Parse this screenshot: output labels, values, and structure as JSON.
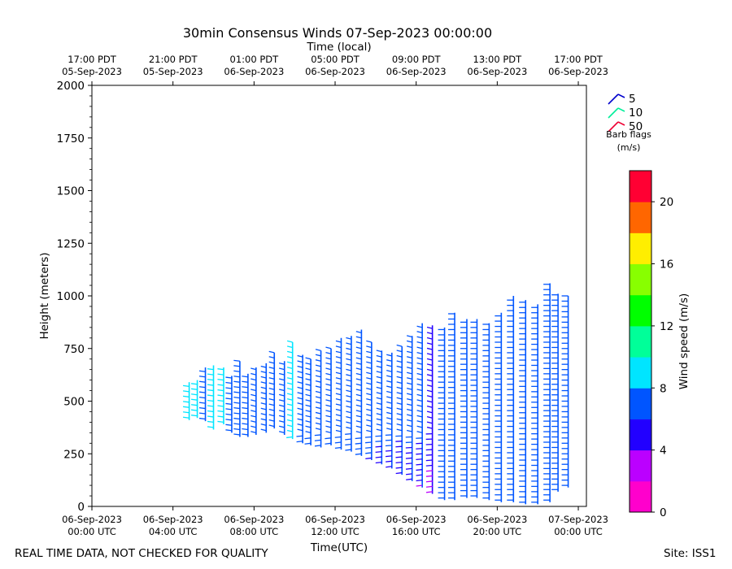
{
  "chart_data": {
    "type": "barbs",
    "title": "30min Consensus Winds 07-Sep-2023 00:00:00",
    "top_axis_label": "Time (local)",
    "xlabel": "Time(UTC)",
    "ylabel": "Height (meters)",
    "x_range_hours_utc": [
      0,
      24.4
    ],
    "ylim": [
      0,
      2000
    ],
    "y_ticks": [
      0,
      250,
      500,
      750,
      1000,
      1250,
      1500,
      1750,
      2000
    ],
    "x_ticks": [
      {
        "hour": 0,
        "line1": "06-Sep-2023",
        "line2": "00:00 UTC"
      },
      {
        "hour": 4,
        "line1": "06-Sep-2023",
        "line2": "04:00 UTC"
      },
      {
        "hour": 8,
        "line1": "06-Sep-2023",
        "line2": "08:00 UTC"
      },
      {
        "hour": 12,
        "line1": "06-Sep-2023",
        "line2": "12:00 UTC"
      },
      {
        "hour": 16,
        "line1": "06-Sep-2023",
        "line2": "16:00 UTC"
      },
      {
        "hour": 20,
        "line1": "06-Sep-2023",
        "line2": "20:00 UTC"
      },
      {
        "hour": 24,
        "line1": "07-Sep-2023",
        "line2": "00:00 UTC"
      }
    ],
    "top_ticks": [
      {
        "hour": 0,
        "line1": "17:00 PDT",
        "line2": "05-Sep-2023"
      },
      {
        "hour": 4,
        "line1": "21:00 PDT",
        "line2": "05-Sep-2023"
      },
      {
        "hour": 8,
        "line1": "01:00 PDT",
        "line2": "06-Sep-2023"
      },
      {
        "hour": 12,
        "line1": "05:00 PDT",
        "line2": "06-Sep-2023"
      },
      {
        "hour": 16,
        "line1": "09:00 PDT",
        "line2": "06-Sep-2023"
      },
      {
        "hour": 20,
        "line1": "13:00 PDT",
        "line2": "06-Sep-2023"
      },
      {
        "hour": 24,
        "line1": "17:00 PDT",
        "line2": "06-Sep-2023"
      }
    ],
    "barb_legend": {
      "items": [
        {
          "value": "5",
          "color": "#0000cc"
        },
        {
          "value": "10",
          "color": "#00ee99"
        },
        {
          "value": "50",
          "color": "#ee0033"
        }
      ],
      "caption_line1": "Barb flags",
      "caption_line2": "(m/s)"
    },
    "colorbar": {
      "label": "Wind speed (m/s)",
      "min": 0,
      "max": 22,
      "ticks": [
        0,
        4,
        8,
        12,
        16,
        20
      ],
      "colors": [
        "#ff00cc",
        "#bb00ff",
        "#2200ff",
        "#0055ff",
        "#00e5ff",
        "#00ff99",
        "#00ff00",
        "#88ff00",
        "#ffee00",
        "#ff6600",
        "#ff0033"
      ]
    },
    "profiles": [
      {
        "hour": 4.8,
        "bottom": 410,
        "top": 590,
        "speed": 8.5
      },
      {
        "hour": 5.2,
        "bottom": 420,
        "top": 600,
        "speed": 8.6
      },
      {
        "hour": 5.6,
        "bottom": 405,
        "top": 660,
        "speed": 6.5
      },
      {
        "hour": 6.0,
        "bottom": 365,
        "top": 670,
        "speed": 8.7
      },
      {
        "hour": 6.5,
        "bottom": 390,
        "top": 660,
        "speed": 8.2
      },
      {
        "hour": 6.9,
        "bottom": 350,
        "top": 620,
        "speed": 7.0
      },
      {
        "hour": 7.3,
        "bottom": 330,
        "top": 690,
        "speed": 7.6
      },
      {
        "hour": 7.7,
        "bottom": 330,
        "top": 630,
        "speed": 6.0
      },
      {
        "hour": 8.1,
        "bottom": 340,
        "top": 660,
        "speed": 7.6
      },
      {
        "hour": 8.6,
        "bottom": 350,
        "top": 680,
        "speed": 7.4
      },
      {
        "hour": 9.0,
        "bottom": 370,
        "top": 730,
        "speed": 7.9
      },
      {
        "hour": 9.5,
        "bottom": 340,
        "top": 690,
        "speed": 7.0
      },
      {
        "hour": 9.9,
        "bottom": 320,
        "top": 780,
        "speed": 8.4
      },
      {
        "hour": 10.4,
        "bottom": 300,
        "top": 720,
        "speed": 7.2
      },
      {
        "hour": 10.8,
        "bottom": 290,
        "top": 700,
        "speed": 7.6
      },
      {
        "hour": 11.3,
        "bottom": 280,
        "top": 740,
        "speed": 7.0
      },
      {
        "hour": 11.8,
        "bottom": 290,
        "top": 750,
        "speed": 7.3
      },
      {
        "hour": 12.3,
        "bottom": 270,
        "top": 800,
        "speed": 7.8
      },
      {
        "hour": 12.8,
        "bottom": 260,
        "top": 810,
        "speed": 7.4
      },
      {
        "hour": 13.3,
        "bottom": 240,
        "top": 840,
        "speed": 7.2
      },
      {
        "hour": 13.8,
        "bottom": 220,
        "top": 780,
        "speed": 7.0
      },
      {
        "hour": 14.3,
        "bottom": 200,
        "top": 740,
        "speed": 6.4
      },
      {
        "hour": 14.8,
        "bottom": 180,
        "top": 730,
        "speed": 6.8
      },
      {
        "hour": 15.3,
        "bottom": 150,
        "top": 760,
        "speed": 6.2
      },
      {
        "hour": 15.8,
        "bottom": 120,
        "top": 810,
        "speed": 6.5
      },
      {
        "hour": 16.3,
        "bottom": 90,
        "top": 870,
        "speed": 6.3
      },
      {
        "hour": 16.8,
        "bottom": 60,
        "top": 860,
        "speed": 5.6
      },
      {
        "hour": 17.4,
        "bottom": 30,
        "top": 850,
        "speed": 6.6
      },
      {
        "hour": 17.9,
        "bottom": 30,
        "top": 920,
        "speed": 7.0
      },
      {
        "hour": 18.5,
        "bottom": 40,
        "top": 890,
        "speed": 7.0
      },
      {
        "hour": 19.0,
        "bottom": 40,
        "top": 890,
        "speed": 6.9
      },
      {
        "hour": 19.6,
        "bottom": 30,
        "top": 870,
        "speed": 6.6
      },
      {
        "hour": 20.2,
        "bottom": 20,
        "top": 920,
        "speed": 6.8
      },
      {
        "hour": 20.8,
        "bottom": 20,
        "top": 1000,
        "speed": 6.4
      },
      {
        "hour": 21.4,
        "bottom": 10,
        "top": 980,
        "speed": 7.0
      },
      {
        "hour": 22.0,
        "bottom": 10,
        "top": 960,
        "speed": 7.0
      },
      {
        "hour": 22.6,
        "bottom": 20,
        "top": 1060,
        "speed": 6.9
      },
      {
        "hour": 23.0,
        "bottom": 70,
        "top": 1010,
        "speed": 6.5
      },
      {
        "hour": 23.5,
        "bottom": 90,
        "top": 1000,
        "speed": 6.8
      }
    ]
  },
  "footer": {
    "left": "REAL TIME DATA, NOT CHECKED FOR QUALITY",
    "right": "Site: ISS1"
  }
}
